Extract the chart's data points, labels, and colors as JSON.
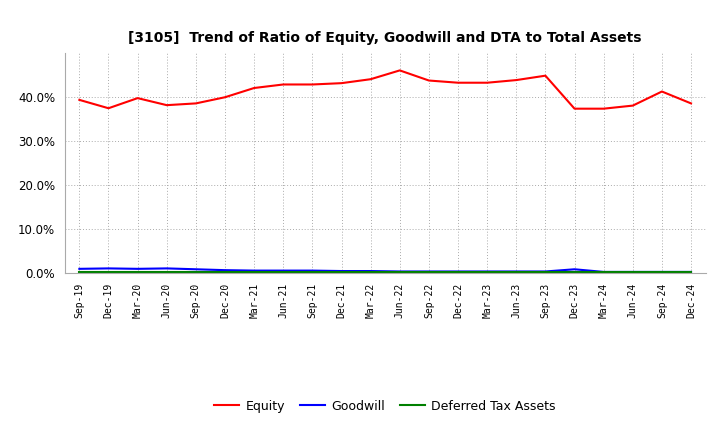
{
  "title": "[3105]  Trend of Ratio of Equity, Goodwill and DTA to Total Assets",
  "x_labels": [
    "Sep-19",
    "Dec-19",
    "Mar-20",
    "Jun-20",
    "Sep-20",
    "Dec-20",
    "Mar-21",
    "Jun-21",
    "Sep-21",
    "Dec-21",
    "Mar-22",
    "Jun-22",
    "Sep-22",
    "Dec-22",
    "Mar-23",
    "Jun-23",
    "Sep-23",
    "Dec-23",
    "Mar-24",
    "Jun-24",
    "Sep-24",
    "Dec-24"
  ],
  "equity": [
    0.393,
    0.374,
    0.397,
    0.381,
    0.385,
    0.399,
    0.42,
    0.428,
    0.428,
    0.431,
    0.44,
    0.46,
    0.437,
    0.432,
    0.432,
    0.438,
    0.448,
    0.373,
    0.373,
    0.38,
    0.412,
    0.385
  ],
  "goodwill": [
    0.009,
    0.01,
    0.009,
    0.01,
    0.008,
    0.006,
    0.005,
    0.005,
    0.005,
    0.004,
    0.004,
    0.003,
    0.003,
    0.003,
    0.003,
    0.003,
    0.003,
    0.008,
    0.002,
    0.002,
    0.002,
    0.002
  ],
  "dta": [
    0.001,
    0.001,
    0.001,
    0.001,
    0.001,
    0.001,
    0.001,
    0.001,
    0.001,
    0.001,
    0.001,
    0.001,
    0.001,
    0.001,
    0.001,
    0.001,
    0.001,
    0.001,
    0.001,
    0.001,
    0.001,
    0.001
  ],
  "equity_color": "#FF0000",
  "goodwill_color": "#0000FF",
  "dta_color": "#008000",
  "ylim": [
    0.0,
    0.5
  ],
  "yticks": [
    0.0,
    0.1,
    0.2,
    0.3,
    0.4
  ],
  "background_color": "#FFFFFF",
  "grid_color": "#AAAAAA",
  "legend_labels": [
    "Equity",
    "Goodwill",
    "Deferred Tax Assets"
  ]
}
